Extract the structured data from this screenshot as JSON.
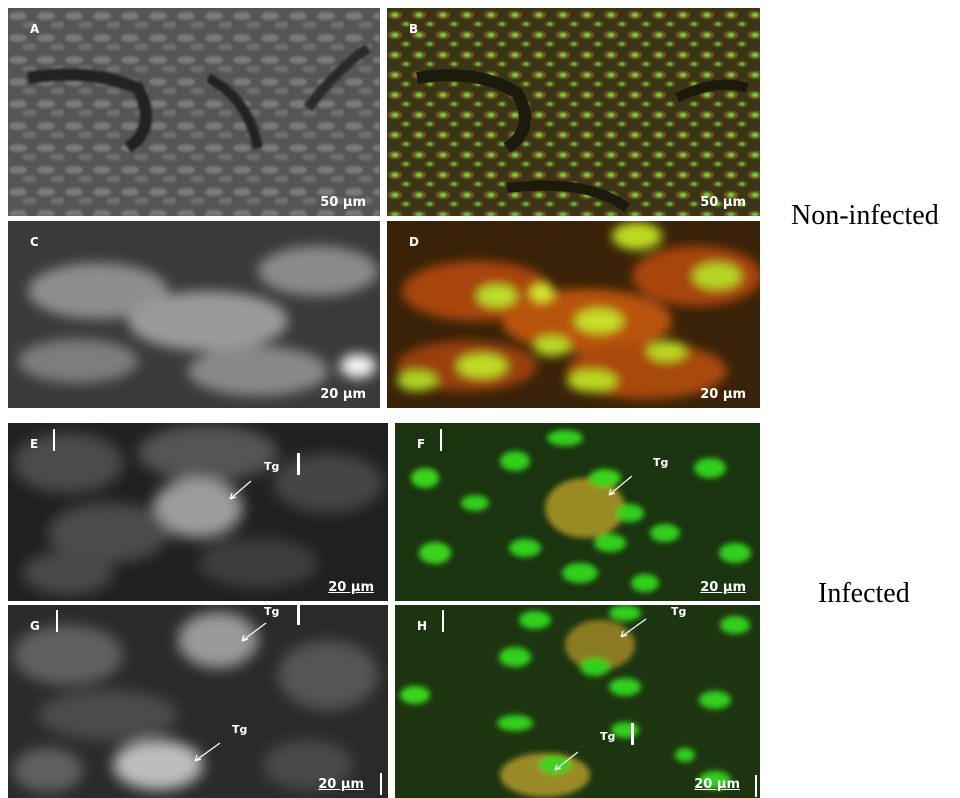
{
  "panels": {
    "A": {
      "label": "A",
      "scale": "50 µm"
    },
    "B": {
      "label": "B",
      "scale": "50 µm"
    },
    "C": {
      "label": "C",
      "scale": "20 µm"
    },
    "D": {
      "label": "D",
      "scale": "20 µm"
    },
    "E": {
      "label": "E",
      "scale": "20 µm",
      "tg": "Tg"
    },
    "F": {
      "label": "F",
      "scale": "20 µm",
      "tg": "Tg"
    },
    "G": {
      "label": "G",
      "scale": "20 µm",
      "tg1": "Tg",
      "tg2": "Tg"
    },
    "H": {
      "label": "H",
      "scale": "20 µm",
      "tg1": "Tg",
      "tg2": "Tg"
    }
  },
  "groups": {
    "non_infected": "Non-infected",
    "infected": "Infected"
  }
}
